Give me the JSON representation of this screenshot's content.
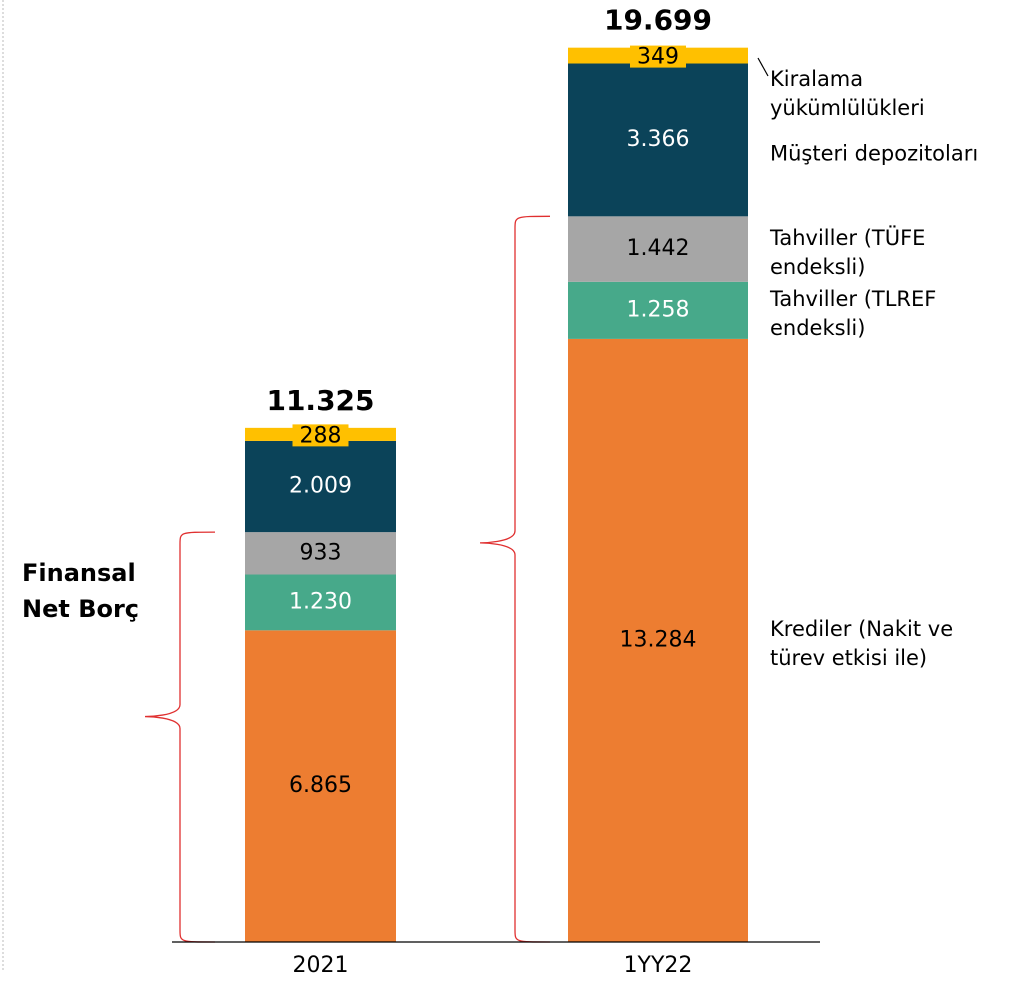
{
  "chart_data": {
    "type": "stacked_bar",
    "categories": [
      "2021",
      "1YY22"
    ],
    "series": [
      {
        "name": "Krediler (Nakit ve türev etkisi ile)",
        "color": "#ED7D31",
        "label_color": "#000000",
        "values": [
          6865,
          13284
        ],
        "value_labels": [
          "6.865",
          "13.284"
        ]
      },
      {
        "name": "Tahviller (TLREF endeksli)",
        "color": "#47A98A",
        "label_color": "#ffffff",
        "values": [
          1230,
          1258
        ],
        "value_labels": [
          "1.230",
          "1.258"
        ]
      },
      {
        "name": "Tahviller (TÜFE endeksli)",
        "color": "#A6A6A6",
        "label_color": "#000000",
        "values": [
          933,
          1442
        ],
        "value_labels": [
          "933",
          "1.442"
        ]
      },
      {
        "name": "Müşteri depozitoları",
        "color": "#0B4359",
        "label_color": "#ffffff",
        "values": [
          2009,
          3366
        ],
        "value_labels": [
          "2.009",
          "3.366"
        ]
      },
      {
        "name": "Kiralama yükümlülükleri",
        "color": "#FFC000",
        "label_color": "#000000",
        "values": [
          288,
          349
        ],
        "value_labels": [
          "288",
          "349"
        ]
      }
    ],
    "totals": {
      "values": [
        11325,
        19699
      ],
      "value_labels": [
        "11.325",
        "19.699"
      ]
    },
    "annotation": "Finansal Net Borç",
    "ylim": [
      0,
      20000
    ]
  }
}
